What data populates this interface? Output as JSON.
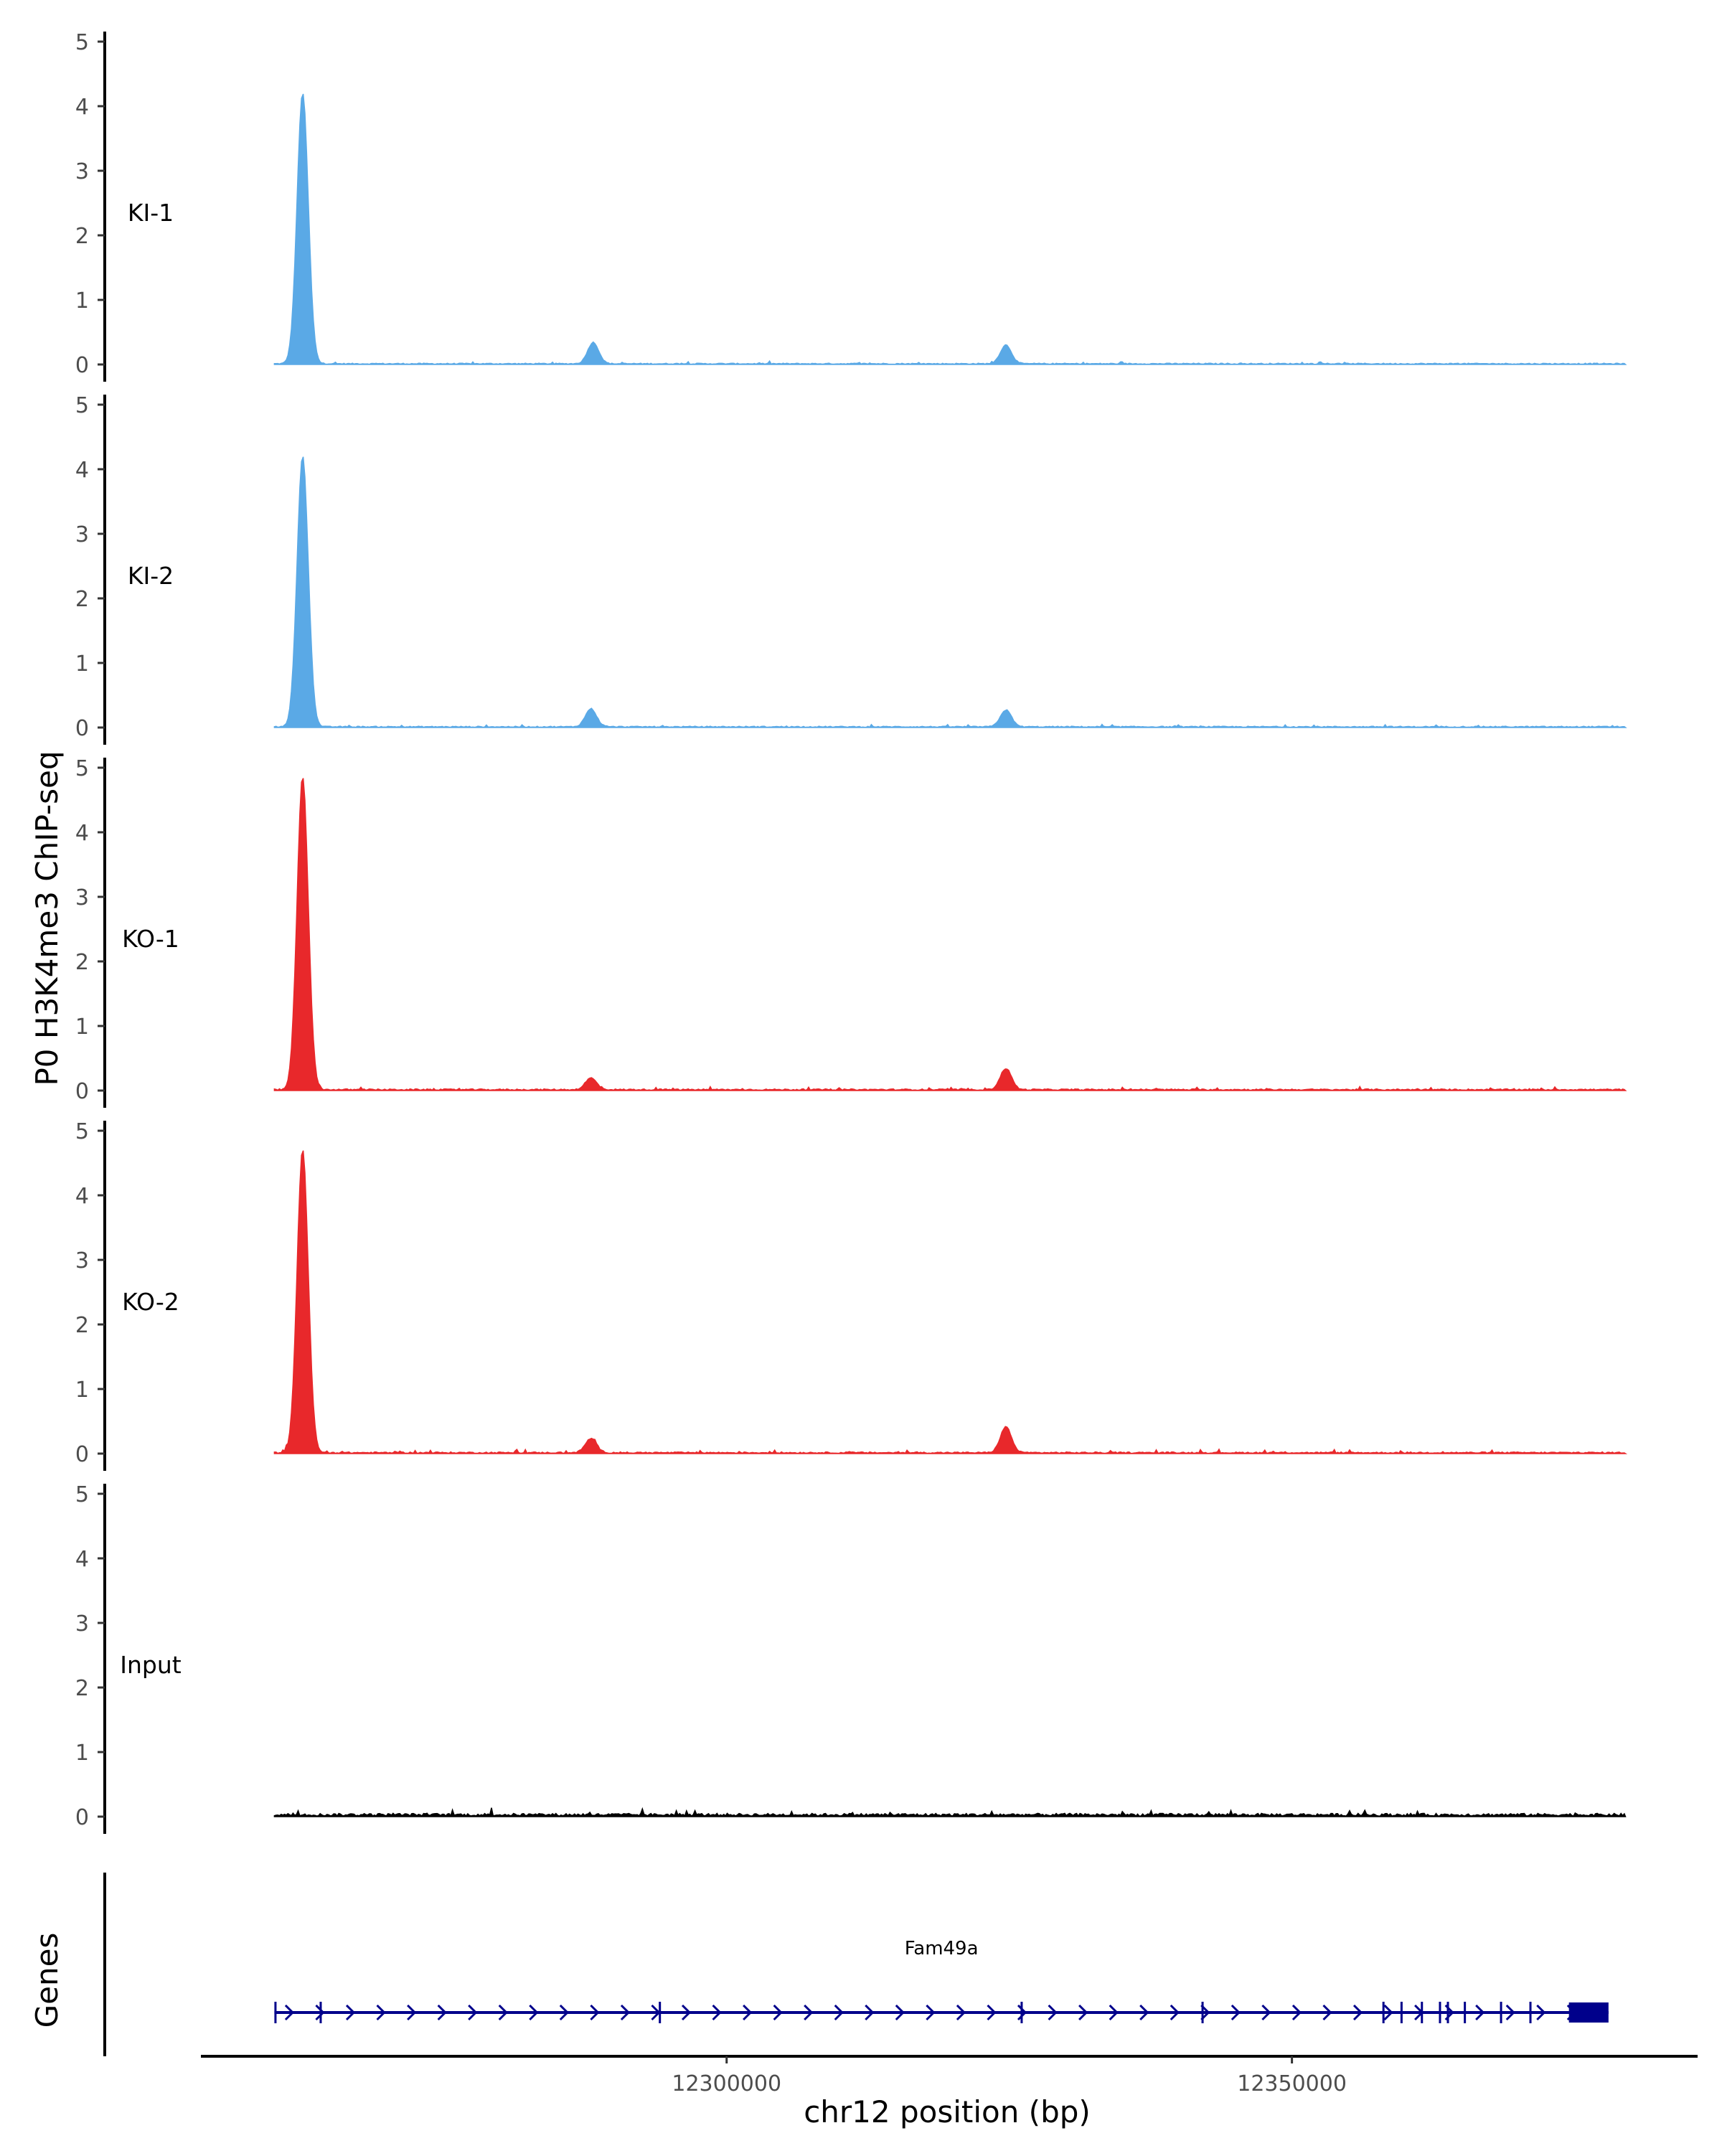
{
  "chart_data": {
    "type": "area",
    "ylabel": "P0 H3K4me3 ChIP-seq",
    "xlabel": "chr12 position (bp)",
    "genes_label": "Genes",
    "ylim": [
      0,
      5
    ],
    "y_ticks": [
      0,
      1,
      2,
      3,
      4,
      5
    ],
    "xlim": [
      12253500,
      12385500
    ],
    "x_ticks": [
      12300000,
      12350000
    ],
    "x_tick_labels": [
      "12300000",
      "12350000"
    ],
    "data_start": 12260000,
    "data_end": 12379500,
    "colors": {
      "KI": "#5aa9e6",
      "KO": "#e8282b",
      "Input": "#000000",
      "gene": "#00008b"
    },
    "tracks": [
      {
        "name": "KI-1",
        "color": "#5aa9e6",
        "baseline": 0.012,
        "peaks": [
          {
            "pos": 12262500,
            "height": 4.2
          },
          {
            "pos": 12288200,
            "height": 0.33
          },
          {
            "pos": 12324700,
            "height": 0.29
          }
        ]
      },
      {
        "name": "KI-2",
        "color": "#5aa9e6",
        "baseline": 0.012,
        "peaks": [
          {
            "pos": 12262500,
            "height": 4.2
          },
          {
            "pos": 12288000,
            "height": 0.28
          },
          {
            "pos": 12324700,
            "height": 0.26
          }
        ]
      },
      {
        "name": "KO-1",
        "color": "#e8282b",
        "baseline": 0.015,
        "peaks": [
          {
            "pos": 12262500,
            "height": 4.85
          },
          {
            "pos": 12288000,
            "height": 0.18
          },
          {
            "pos": 12324700,
            "height": 0.33
          }
        ]
      },
      {
        "name": "KO-2",
        "color": "#e8282b",
        "baseline": 0.015,
        "peaks": [
          {
            "pos": 12262500,
            "height": 4.7
          },
          {
            "pos": 12288000,
            "height": 0.22
          },
          {
            "pos": 12324700,
            "height": 0.4
          }
        ]
      },
      {
        "name": "Input",
        "color": "#000000",
        "baseline": 0.03,
        "peaks": []
      }
    ],
    "gene": {
      "name": "Fam49a",
      "start": 12260000,
      "end": 12378000,
      "strand": "+",
      "exons": [
        {
          "start": 12260000,
          "end": 12260100
        },
        {
          "start": 12264000,
          "end": 12264100
        },
        {
          "start": 12294000,
          "end": 12294100
        },
        {
          "start": 12326000,
          "end": 12326100
        },
        {
          "start": 12342000,
          "end": 12342100
        },
        {
          "start": 12358000,
          "end": 12358100
        },
        {
          "start": 12359600,
          "end": 12359700
        },
        {
          "start": 12361400,
          "end": 12361500
        },
        {
          "start": 12363000,
          "end": 12363100
        },
        {
          "start": 12363700,
          "end": 12363800
        },
        {
          "start": 12365200,
          "end": 12365300
        },
        {
          "start": 12368400,
          "end": 12368500
        },
        {
          "start": 12371000,
          "end": 12371100
        },
        {
          "start": 12374500,
          "end": 12378000
        }
      ]
    }
  }
}
